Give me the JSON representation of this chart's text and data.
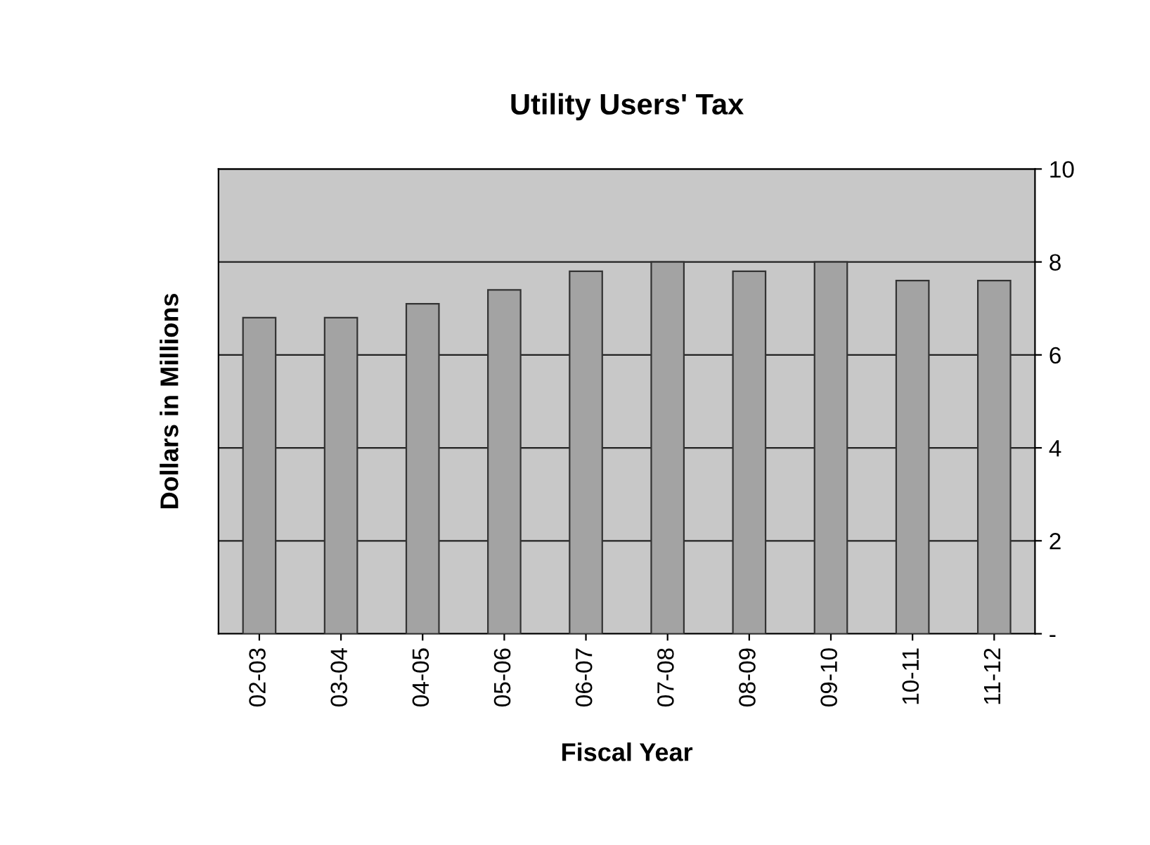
{
  "chart_data": {
    "type": "bar",
    "title": "Utility Users' Tax",
    "xlabel": "Fiscal Year",
    "ylabel": "Dollars in Millions",
    "categories": [
      "02-03",
      "03-04",
      "04-05",
      "05-06",
      "06-07",
      "07-08",
      "08-09",
      "09-10",
      "10-11",
      "11-12"
    ],
    "series": [
      {
        "color": "#a3a3a3",
        "values": [
          6.8,
          6.8,
          7.1,
          7.4,
          7.8,
          8.0,
          7.8,
          8.0,
          7.6,
          7.6
        ]
      }
    ],
    "ylim": [
      0,
      10
    ],
    "yticks": [
      {
        "value": 0,
        "label": "-"
      },
      2,
      4,
      6,
      8,
      10
    ],
    "grid": "y"
  }
}
